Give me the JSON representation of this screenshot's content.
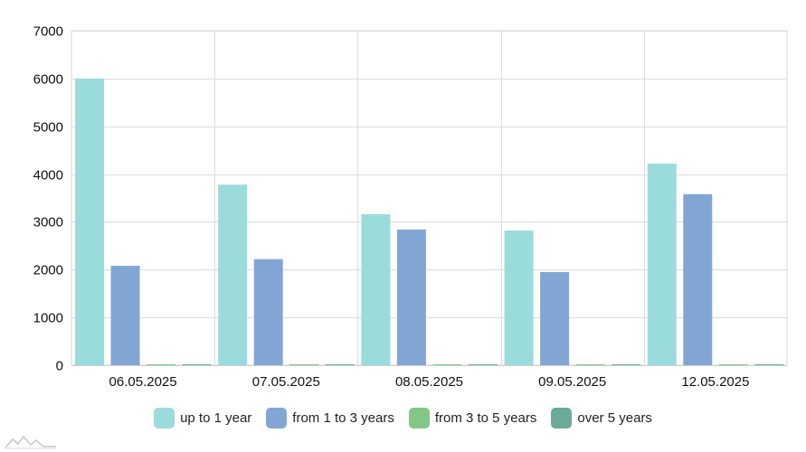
{
  "chart_data": {
    "type": "bar",
    "categories": [
      "06.05.2025",
      "07.05.2025",
      "08.05.2025",
      "09.05.2025",
      "12.05.2025"
    ],
    "series": [
      {
        "name": "up to 1 year",
        "color": "#9adcdc",
        "values": [
          6000,
          3780,
          3160,
          2820,
          4220
        ]
      },
      {
        "name": "from 1 to 3 years",
        "color": "#82a6d4",
        "values": [
          2080,
          2220,
          2840,
          1950,
          3580
        ]
      },
      {
        "name": "from 3 to 5 years",
        "color": "#82c785",
        "values": [
          5,
          5,
          5,
          5,
          5
        ]
      },
      {
        "name": "over 5 years",
        "color": "#6aaa96",
        "values": [
          5,
          5,
          5,
          5,
          5
        ]
      }
    ],
    "title": "",
    "xlabel": "",
    "ylabel": "",
    "ylim": [
      0,
      7000
    ],
    "yticks": [
      0,
      1000,
      2000,
      3000,
      4000,
      5000,
      6000,
      7000
    ],
    "grid": true,
    "legend": "bottom"
  },
  "logo": {
    "name": "mountain-logo-icon"
  }
}
